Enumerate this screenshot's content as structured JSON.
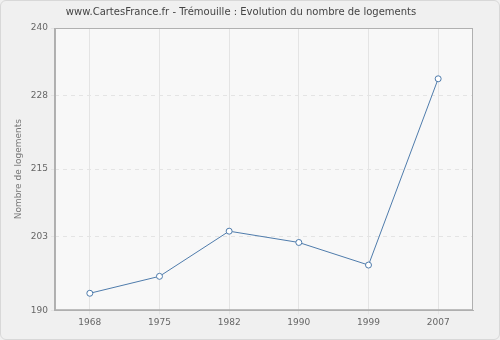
{
  "chart_data": {
    "type": "line",
    "title": "www.CartesFrance.fr - Trémouille : Evolution du nombre de logements",
    "y_label": "Nombre de logements",
    "categories": [
      "1968",
      "1975",
      "1982",
      "1990",
      "1999",
      "2007"
    ],
    "values": [
      193,
      196,
      204,
      202,
      198,
      231
    ],
    "color": "#4f7cac",
    "marker": "circle",
    "line_style": "solid",
    "ylim": [
      190,
      240
    ],
    "yticks": [
      190,
      203,
      215,
      228,
      240
    ],
    "grid": true
  }
}
